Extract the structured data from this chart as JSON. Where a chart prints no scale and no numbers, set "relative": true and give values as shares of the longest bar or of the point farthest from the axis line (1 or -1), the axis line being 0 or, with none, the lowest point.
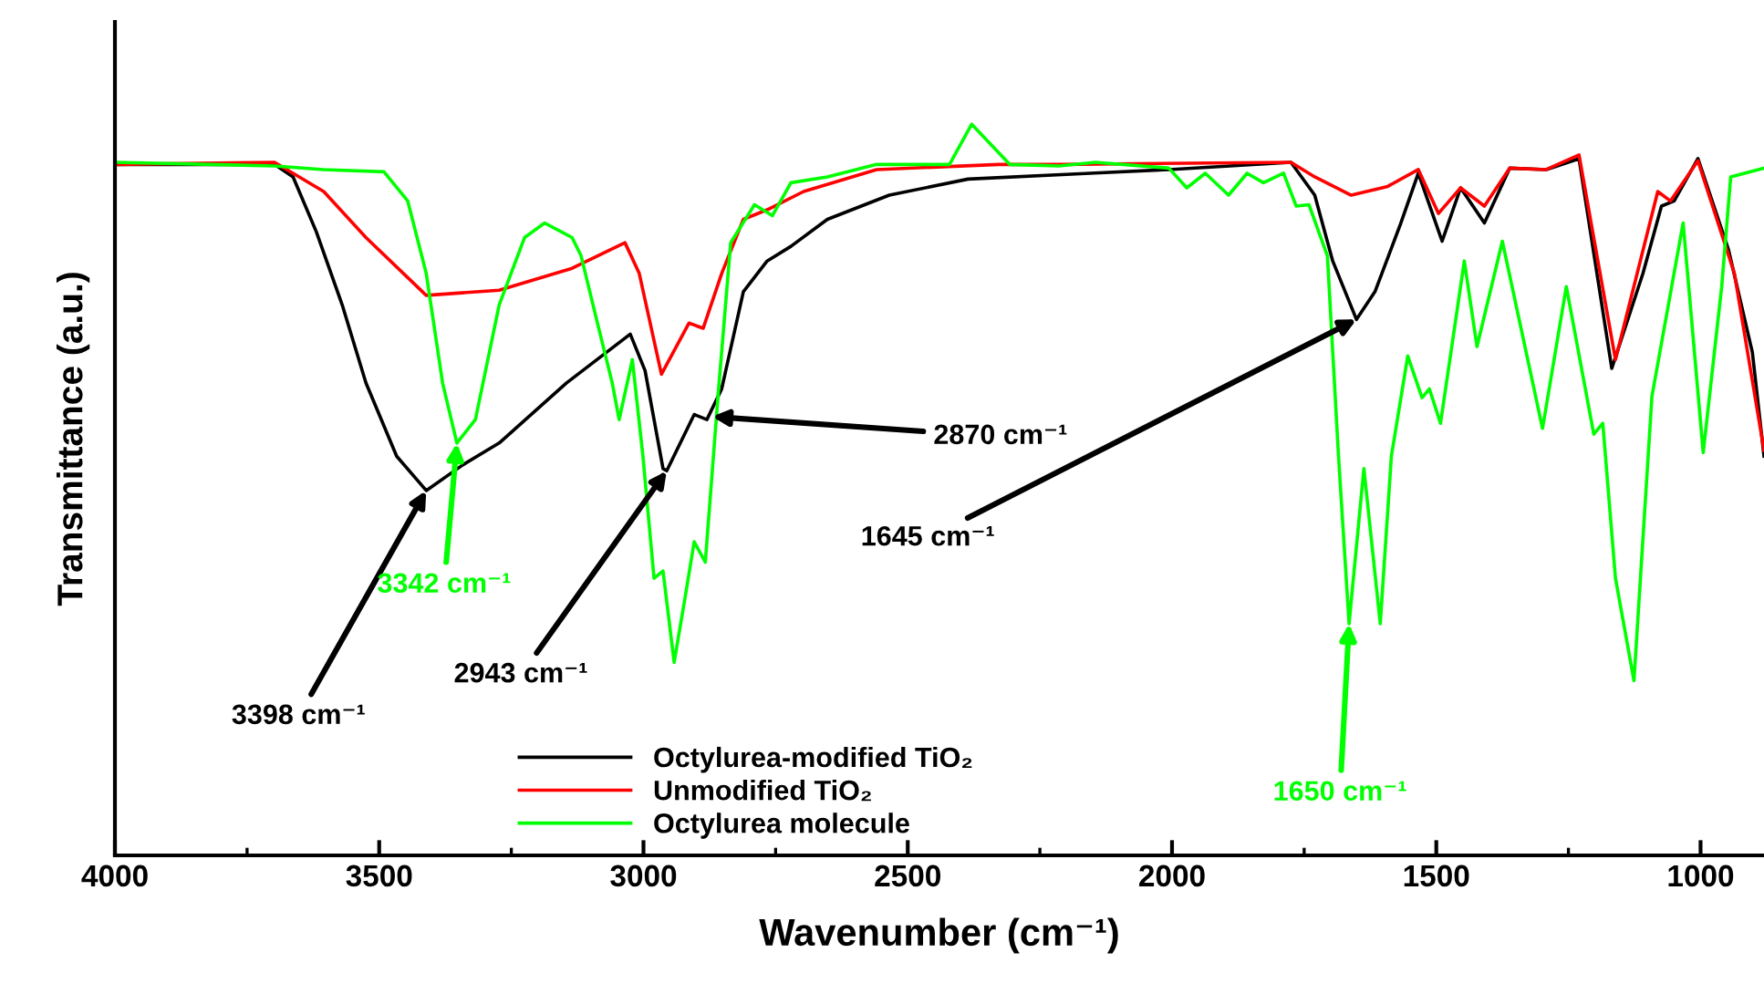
{
  "chart_data": {
    "type": "line",
    "relative": true,
    "xlabel": "Wavenumber (cm⁻¹)",
    "ylabel": "Transmittance (a.u.)",
    "xlim": [
      4000,
      880
    ],
    "xticks": [
      4000,
      {
        "value": 3750,
        "label": null
      },
      3500,
      {
        "value": 3250,
        "label": null
      },
      3000,
      {
        "value": 2750,
        "label": null
      },
      2500,
      {
        "value": 2250,
        "label": null
      },
      2000,
      {
        "value": 1750,
        "label": null
      },
      1500,
      {
        "value": 1250,
        "label": null
      },
      1000
    ],
    "grid": false,
    "legend": "bottom",
    "marker": "none",
    "line_style": "solid",
    "series": [
      {
        "name": "Octylurea-modified TiO₂",
        "color": "#000000",
        "x": [
          4000,
          3698,
          3663,
          3619,
          3570,
          3525,
          3467,
          3411,
          3342,
          3273,
          3146,
          3025,
          2997,
          2963,
          2956,
          2904,
          2880,
          2852,
          2811,
          2766,
          2721,
          2652,
          2535,
          2386,
          2155,
          2006,
          1775,
          1730,
          1696,
          1651,
          1616,
          1568,
          1534,
          1489,
          1454,
          1409,
          1361,
          1292,
          1230,
          1168,
          1109,
          1074,
          1050,
          1005,
          947,
          902,
          880
        ],
        "values": [
          0.945,
          0.945,
          0.928,
          0.853,
          0.753,
          0.646,
          0.546,
          0.499,
          0.534,
          0.564,
          0.646,
          0.713,
          0.663,
          0.529,
          0.526,
          0.603,
          0.596,
          0.638,
          0.771,
          0.813,
          0.833,
          0.87,
          0.903,
          0.925,
          0.933,
          0.938,
          0.948,
          0.903,
          0.813,
          0.733,
          0.771,
          0.863,
          0.933,
          0.84,
          0.913,
          0.865,
          0.94,
          0.938,
          0.953,
          0.666,
          0.796,
          0.888,
          0.895,
          0.953,
          0.828,
          0.688,
          0.546
        ]
      },
      {
        "name": "Unmodified TiO₂",
        "color": "#ff0000",
        "x": [
          4000,
          3698,
          3663,
          3605,
          3525,
          3411,
          3273,
          3135,
          3035,
          3008,
          2966,
          2914,
          2887,
          2852,
          2811,
          2766,
          2697,
          2559,
          2328,
          2214,
          1775,
          1730,
          1661,
          1592,
          1534,
          1496,
          1454,
          1409,
          1361,
          1292,
          1230,
          1161,
          1081,
          1057,
          1005,
          936,
          880
        ],
        "values": [
          0.945,
          0.948,
          0.933,
          0.908,
          0.845,
          0.766,
          0.773,
          0.803,
          0.838,
          0.796,
          0.658,
          0.728,
          0.721,
          0.796,
          0.87,
          0.883,
          0.908,
          0.938,
          0.945,
          0.945,
          0.948,
          0.928,
          0.903,
          0.915,
          0.938,
          0.878,
          0.913,
          0.888,
          0.94,
          0.938,
          0.958,
          0.678,
          0.908,
          0.895,
          0.95,
          0.796,
          0.554
        ]
      },
      {
        "name": "Octylurea molecule",
        "color": "#00ff00",
        "x": [
          4000,
          3698,
          3605,
          3491,
          3446,
          3411,
          3380,
          3353,
          3318,
          3273,
          3225,
          3187,
          3135,
          3118,
          3087,
          3059,
          3046,
          3021,
          3001,
          2980,
          2963,
          2942,
          2921,
          2904,
          2883,
          2859,
          2835,
          2790,
          2756,
          2721,
          2652,
          2559,
          2421,
          2379,
          2307,
          2214,
          2145,
          2006,
          1972,
          1937,
          1893,
          1858,
          1827,
          1789,
          1765,
          1741,
          1706,
          1685,
          1665,
          1637,
          1606,
          1585,
          1554,
          1527,
          1513,
          1492,
          1447,
          1423,
          1375,
          1299,
          1254,
          1202,
          1185,
          1161,
          1126,
          1092,
          1033,
          995,
          960,
          943,
          880
        ],
        "values": [
          0.948,
          0.943,
          0.938,
          0.935,
          0.895,
          0.796,
          0.646,
          0.564,
          0.596,
          0.753,
          0.845,
          0.865,
          0.845,
          0.82,
          0.728,
          0.646,
          0.596,
          0.678,
          0.546,
          0.379,
          0.389,
          0.264,
          0.354,
          0.429,
          0.401,
          0.628,
          0.838,
          0.89,
          0.875,
          0.92,
          0.928,
          0.945,
          0.945,
          1.0,
          0.945,
          0.943,
          0.948,
          0.94,
          0.913,
          0.933,
          0.903,
          0.933,
          0.92,
          0.933,
          0.888,
          0.89,
          0.82,
          0.546,
          0.317,
          0.529,
          0.317,
          0.546,
          0.683,
          0.626,
          0.638,
          0.591,
          0.813,
          0.696,
          0.84,
          0.584,
          0.778,
          0.576,
          0.591,
          0.379,
          0.239,
          0.628,
          0.865,
          0.551,
          0.778,
          0.928,
          0.94
        ]
      }
    ],
    "annotations": [
      {
        "text": "3398 cm⁻¹",
        "x": 3411,
        "y": 0.499
      },
      {
        "text": "3342 cm⁻¹",
        "x": 3353,
        "y": 0.564
      },
      {
        "text": "2943 cm⁻¹",
        "x": 2956,
        "y": 0.526
      },
      {
        "text": "2870 cm⁻¹",
        "x": 2870,
        "y": 0.6
      },
      {
        "text": "1645 cm⁻¹",
        "x": 1651,
        "y": 0.733
      },
      {
        "text": "1650 cm⁻¹",
        "x": 1665,
        "y": 0.317
      }
    ]
  }
}
